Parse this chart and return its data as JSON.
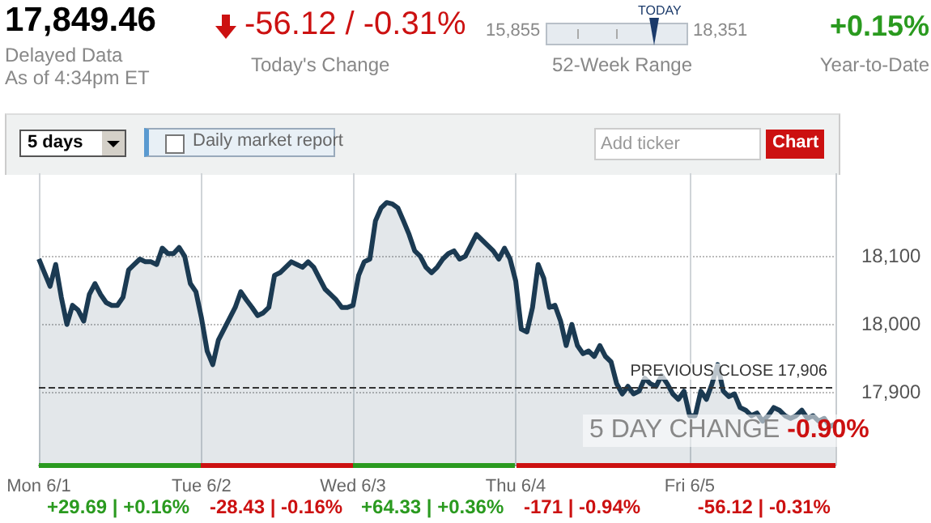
{
  "chart_data": {
    "type": "area",
    "categories": [
      "Mon 6/1",
      null,
      null,
      null,
      null,
      null,
      null,
      null,
      null,
      null,
      null,
      null,
      null,
      null,
      null,
      null,
      null,
      null,
      null,
      null,
      null,
      null,
      null,
      null,
      null,
      null,
      null,
      null,
      null,
      "Tue 6/2",
      null,
      null,
      null,
      null,
      null,
      null,
      null,
      null,
      null,
      null,
      null,
      null,
      null,
      null,
      null,
      null,
      null,
      null,
      null,
      null,
      null,
      null,
      null,
      null,
      null,
      null,
      "Wed 6/3",
      null,
      null,
      null,
      null,
      null,
      null,
      null,
      null,
      null,
      null,
      null,
      null,
      null,
      null,
      null,
      null,
      null,
      null,
      null,
      null,
      null,
      null,
      null,
      null,
      null,
      null,
      null,
      null,
      "Thu 6/4",
      null,
      null,
      null,
      null,
      null,
      null,
      null,
      null,
      null,
      null,
      null,
      null,
      null,
      null,
      null,
      null,
      null,
      null,
      null,
      null,
      null,
      null,
      null,
      null,
      null,
      null,
      null,
      null,
      null,
      null,
      "Fri 6/5",
      null,
      null,
      null,
      null,
      null,
      null,
      null,
      null,
      null,
      null,
      null,
      null,
      null,
      null,
      null,
      null,
      null,
      null,
      null,
      null,
      null,
      null,
      null,
      null,
      null,
      null
    ],
    "ylim": [
      17793,
      18221
    ],
    "yticks": [
      {
        "value": 17900,
        "label": "17,900"
      },
      {
        "value": 18000,
        "label": "18,000"
      },
      {
        "value": 18100,
        "label": "18,100"
      }
    ],
    "grid": true,
    "series": [
      {
        "color": "#1b3a52",
        "values": [
          18095,
          18075,
          18055,
          18087,
          18039,
          17999,
          18027,
          18020,
          18004,
          18043,
          18059,
          18043,
          18031,
          18027,
          18027,
          18039,
          18079,
          18087,
          18095,
          18091,
          18091,
          18087,
          18111,
          18103,
          18103,
          18112,
          18099,
          18059,
          18047,
          18008,
          17960,
          17940,
          17976,
          17992,
          18008,
          18024,
          18047,
          18035,
          18024,
          18012,
          18016,
          18024,
          18071,
          18075,
          18083,
          18091,
          18087,
          18083,
          18091,
          18083,
          18067,
          18051,
          18043,
          18035,
          18024,
          18024,
          18027,
          18071,
          18091,
          18095,
          18151,
          18170,
          18178,
          18176,
          18170,
          18151,
          18131,
          18107,
          18099,
          18083,
          18075,
          18083,
          18095,
          18103,
          18107,
          18095,
          18099,
          18115,
          18131,
          18123,
          18115,
          18107,
          18095,
          18111,
          18095,
          18063,
          17992,
          17988,
          18024,
          18087,
          18067,
          18024,
          18027,
          18004,
          17968,
          17999,
          17968,
          17956,
          17960,
          17952,
          17968,
          17952,
          17944,
          17912,
          17897,
          17908,
          17897,
          17901,
          17920,
          17912,
          17908,
          17924,
          17912,
          17897,
          17889,
          17901,
          17865,
          17865,
          17901,
          17889,
          17912,
          17940,
          17901,
          17893,
          17897,
          17877,
          17873,
          17865,
          17869,
          17857,
          17865,
          17877,
          17873,
          17865,
          17861,
          17865,
          17873,
          17861,
          17865,
          17857,
          17861,
          17849,
          17853
        ]
      }
    ],
    "ref_lines": [
      {
        "axis": "y",
        "value": 17906,
        "label": "PREVIOUS CLOSE 17,906",
        "line_style": "dashed",
        "color": "#333333"
      }
    ],
    "annotations": [
      "17,849.46",
      "Delayed Data",
      "As of 4:34pm ET",
      "-56.12 / -0.31%",
      "Today's Change",
      "15,855",
      "TODAY",
      "18,351",
      "52-Week Range",
      "+0.15%",
      "Year-to-Date",
      "5 days",
      "Daily market report",
      "Add ticker",
      "Chart",
      "5 DAY CHANGE",
      "-0.90%",
      "+29.69 | +0.16%",
      "-28.43 | -0.16%",
      "+64.33 | +0.36%",
      "-171 | -0.94%",
      "-56.12 | -0.31%"
    ]
  }
}
